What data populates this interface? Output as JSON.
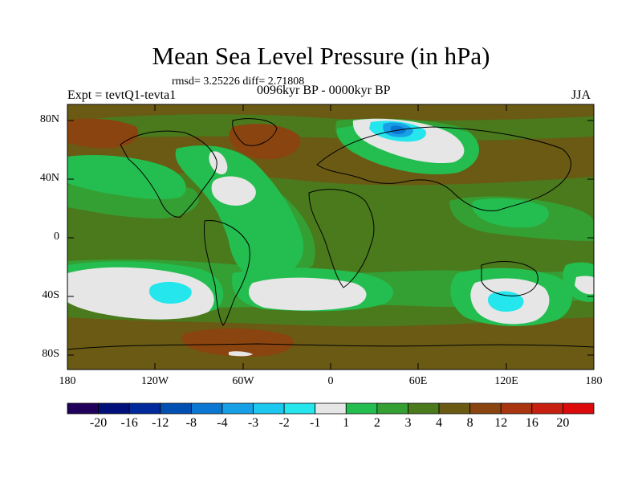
{
  "title": "Mean Sea Level Pressure (in hPa)",
  "stats": "rmsd= 3.25226 diff= 2.71808",
  "experiment": "Expt = tevtQ1-tevta1",
  "period": "0096kyr BP - 0000kyr BP",
  "season": "JJA",
  "map": {
    "lon_range": [
      -180,
      180
    ],
    "lat_range": [
      -90,
      90
    ],
    "lat_ticks": [
      "80N",
      "40N",
      "0",
      "40S",
      "80S"
    ],
    "lon_ticks": [
      "180",
      "120W",
      "60W",
      "0",
      "60E",
      "120E",
      "180"
    ],
    "background_level": "4 to 8",
    "regions": [
      {
        "name": "north-pacific-high",
        "level": "8 to 12"
      },
      {
        "name": "north-atlantic-low",
        "level": "-1 to 1"
      },
      {
        "name": "scandinavia-low",
        "level": "-3 to -2"
      },
      {
        "name": "south-pacific-low",
        "level": "-2 to -1"
      },
      {
        "name": "south-atlantic-low",
        "level": "-1 to 1"
      },
      {
        "name": "australia-low",
        "level": "-2 to -1"
      }
    ]
  },
  "colorbar": {
    "labels": [
      "-20",
      "-16",
      "-12",
      "-8",
      "-4",
      "-3",
      "-2",
      "-1",
      "1",
      "2",
      "3",
      "4",
      "8",
      "12",
      "16",
      "20"
    ],
    "colors": [
      "#20005a",
      "#00107a",
      "#002a9c",
      "#0050b4",
      "#0a78d2",
      "#18a0e6",
      "#1cc8f0",
      "#24e6ec",
      "#e6e6e6",
      "#24be50",
      "#34a034",
      "#4a7a1c",
      "#6a5a14",
      "#8a4410",
      "#a83410",
      "#c82010",
      "#dc0a0a"
    ]
  }
}
